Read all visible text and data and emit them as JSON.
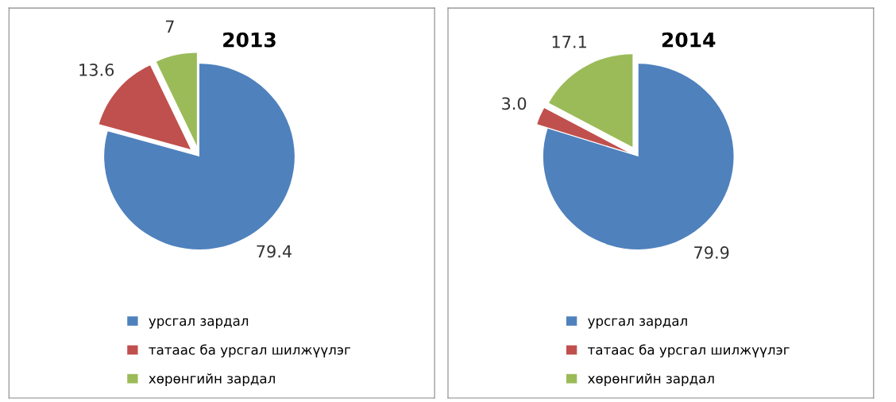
{
  "chart_data": [
    {
      "type": "pie",
      "title": "2013",
      "categories": [
        "урсгал зардал",
        "татаас ба урсгал шилжүүлэг",
        "хөрөнгийн зардал"
      ],
      "values": [
        79.4,
        13.6,
        7
      ],
      "value_labels": [
        "79.4",
        "13.6",
        "7"
      ],
      "colors": [
        "#4f81bd",
        "#c0504d",
        "#9bbb59"
      ],
      "legend": "bottom"
    },
    {
      "type": "pie",
      "title": "2014",
      "categories": [
        "урсгал зардал",
        "татаас ба урсгал шилжүүлэг",
        "хөрөнгийн зардал"
      ],
      "values": [
        79.9,
        3.0,
        17.1
      ],
      "value_labels": [
        "79.9",
        "3.0",
        "17.1"
      ],
      "colors": [
        "#4f81bd",
        "#c0504d",
        "#9bbb59"
      ],
      "legend": "bottom"
    }
  ]
}
